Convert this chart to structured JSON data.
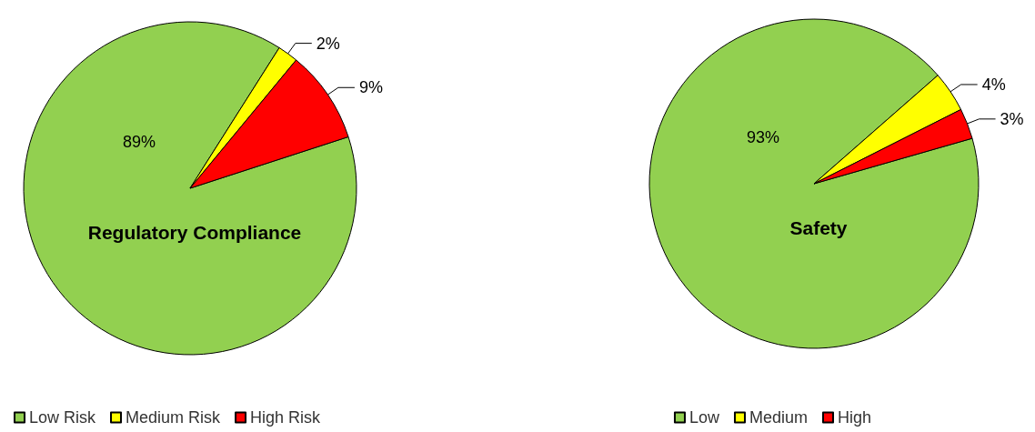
{
  "chart_data": [
    {
      "type": "pie",
      "title": "Regulatory Compliance",
      "categories": [
        "Low Risk",
        "Medium Risk",
        "High Risk"
      ],
      "values": [
        89,
        2,
        9
      ],
      "colors": [
        "#92d050",
        "#ffff00",
        "#ff0000"
      ],
      "value_labels": [
        "89%",
        "2%",
        "9%"
      ],
      "legend": "bottom left"
    },
    {
      "type": "pie",
      "title": "Safety",
      "categories": [
        "Low",
        "Medium",
        "High"
      ],
      "values": [
        93,
        4,
        3
      ],
      "colors": [
        "#92d050",
        "#ffff00",
        "#ff0000"
      ],
      "value_labels": [
        "93%",
        "4%",
        "3%"
      ],
      "legend": "bottom"
    }
  ]
}
